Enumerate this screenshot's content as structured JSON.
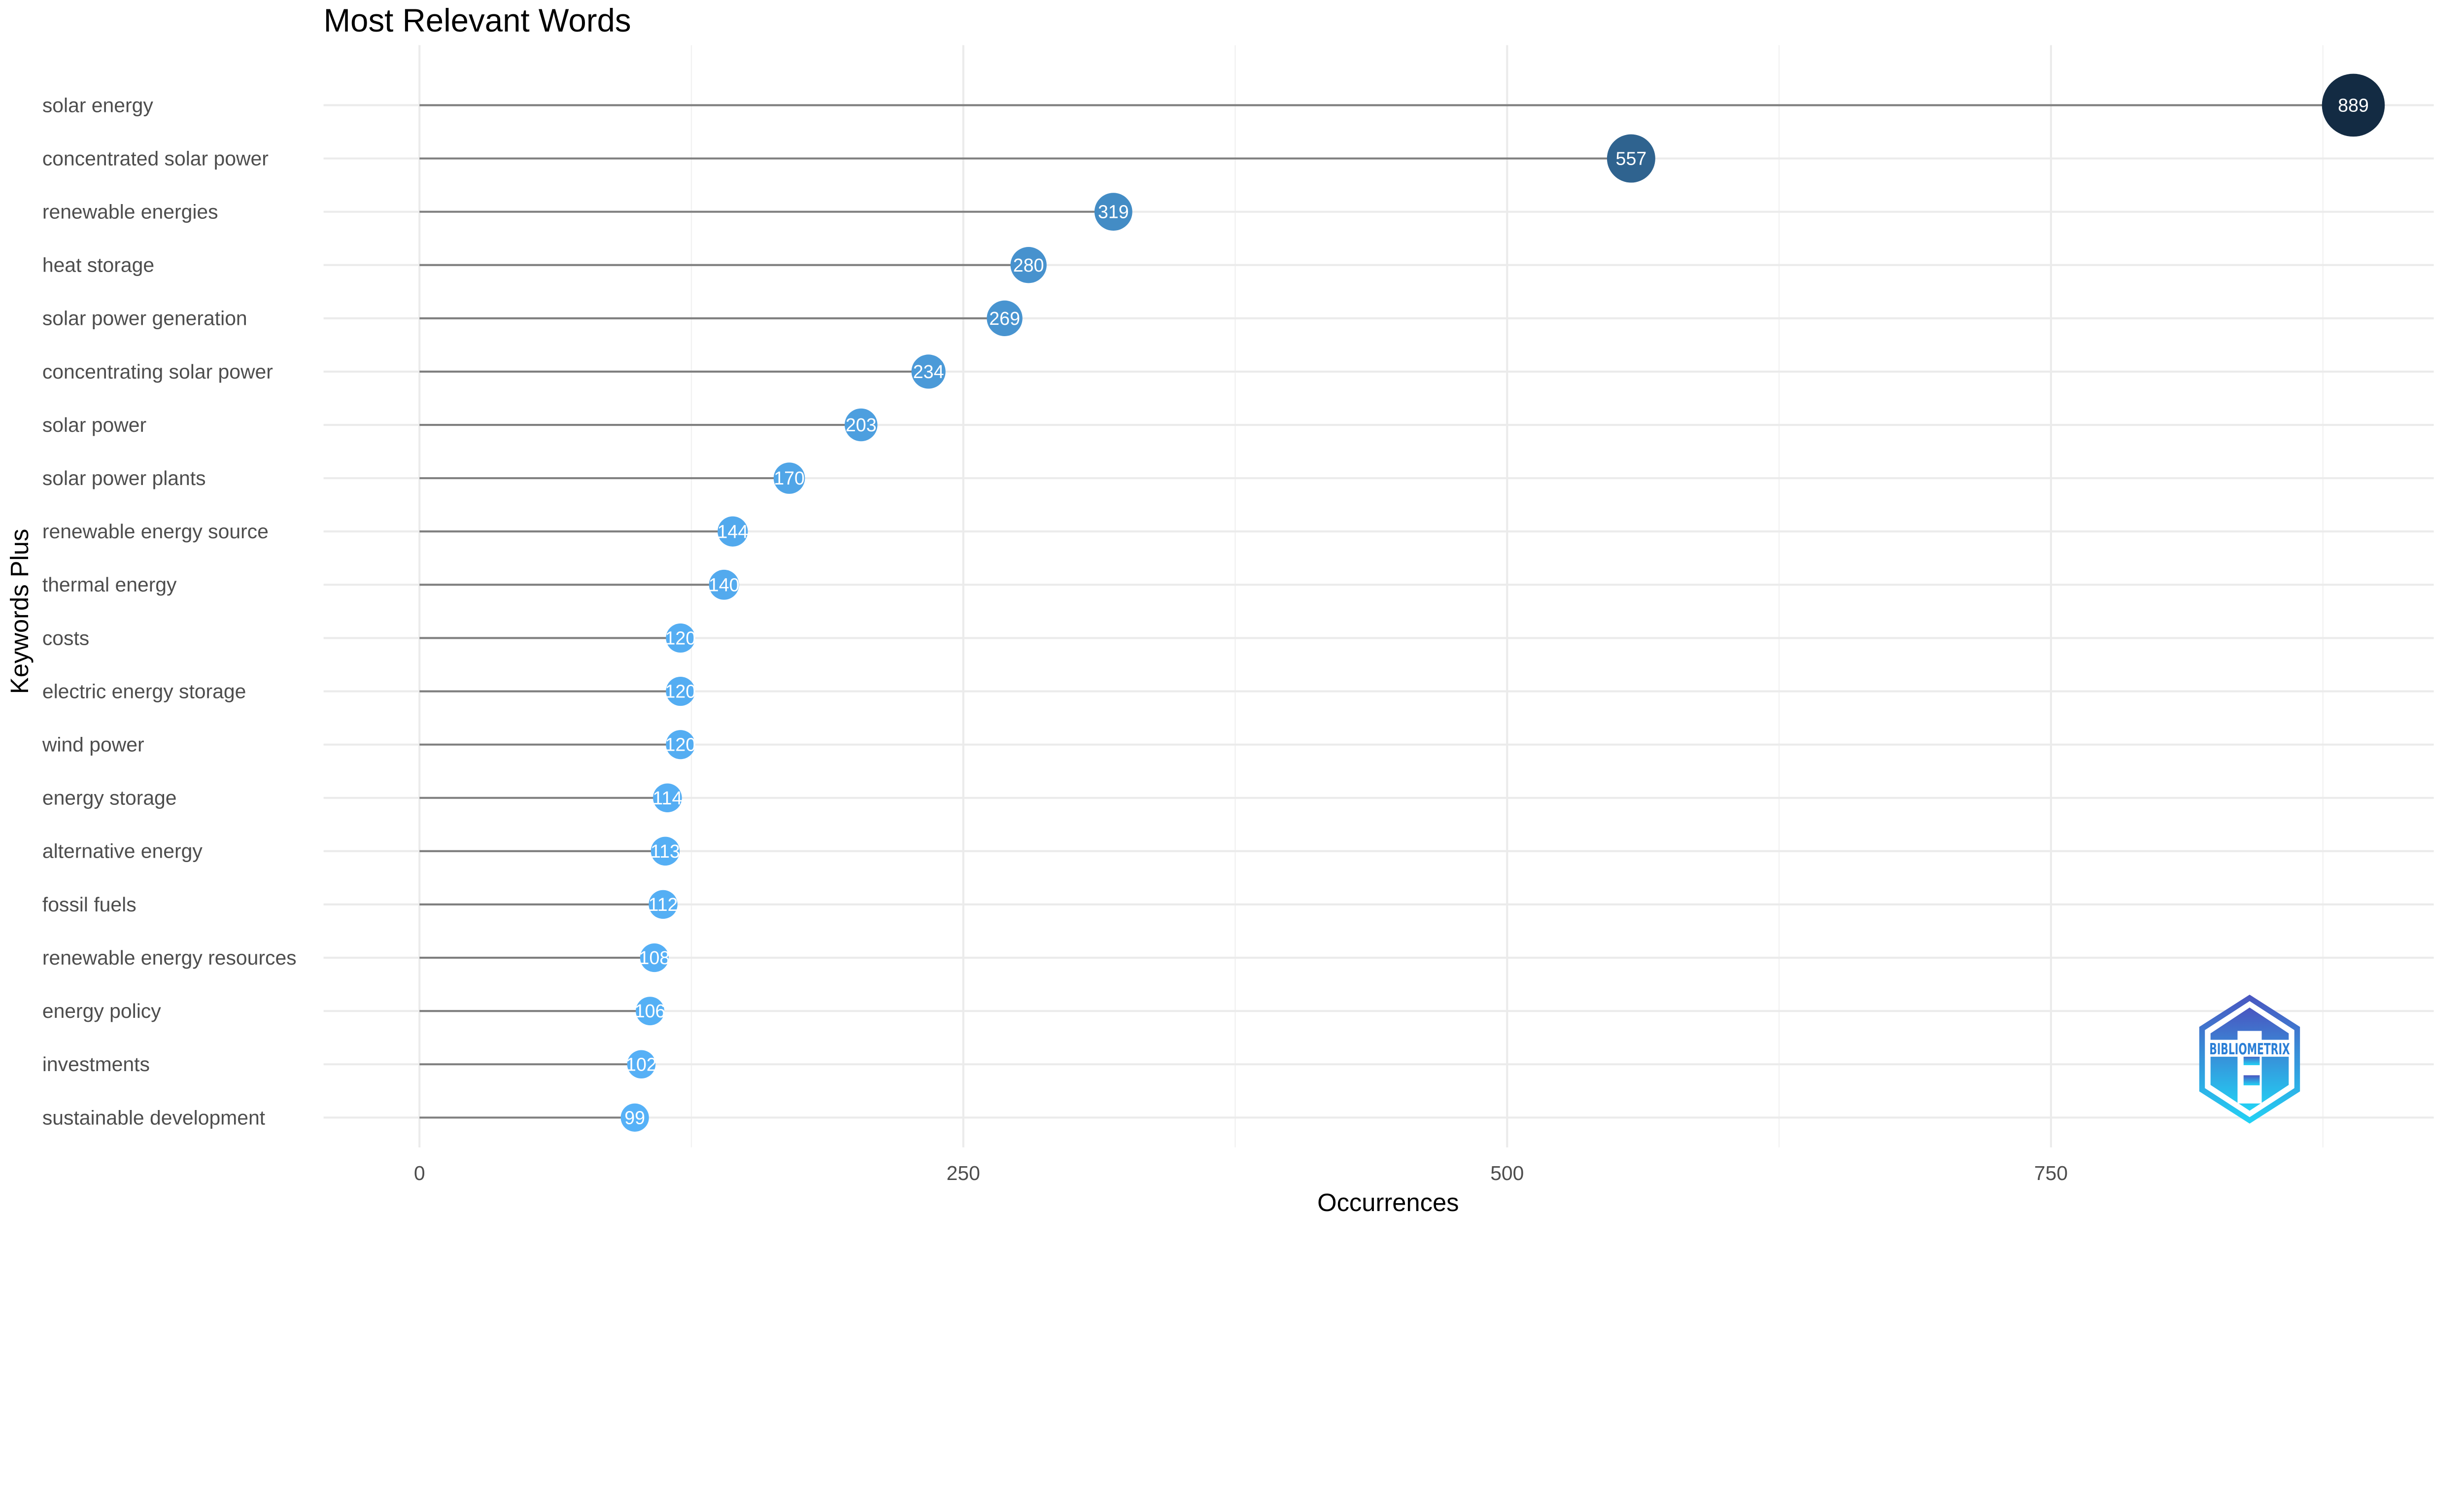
{
  "chart_data": {
    "type": "lollipop",
    "title": "Most Relevant Words",
    "xlabel": "Occurrences",
    "ylabel": "Keywords Plus",
    "xlim": [
      -88,
      935
    ],
    "xticks": [
      0,
      250,
      500,
      750
    ],
    "grid": true,
    "color_low": "#56B1F7",
    "color_high": "#132B43",
    "stem_color": "#7f7f7f",
    "categories": [
      "solar energy",
      "concentrated solar power",
      "renewable energies",
      "heat storage",
      "solar power generation",
      "concentrating solar power",
      "solar power",
      "solar power plants",
      "renewable energy source",
      "thermal energy",
      "costs",
      "electric energy storage",
      "wind power",
      "energy storage",
      "alternative energy",
      "fossil fuels",
      "renewable energy resources",
      "energy policy",
      "investments",
      "sustainable development"
    ],
    "values": [
      889,
      557,
      319,
      280,
      269,
      234,
      203,
      170,
      144,
      140,
      120,
      120,
      120,
      114,
      113,
      112,
      108,
      106,
      102,
      99
    ]
  },
  "logo": {
    "text": "BIBLIOMETRIX"
  }
}
